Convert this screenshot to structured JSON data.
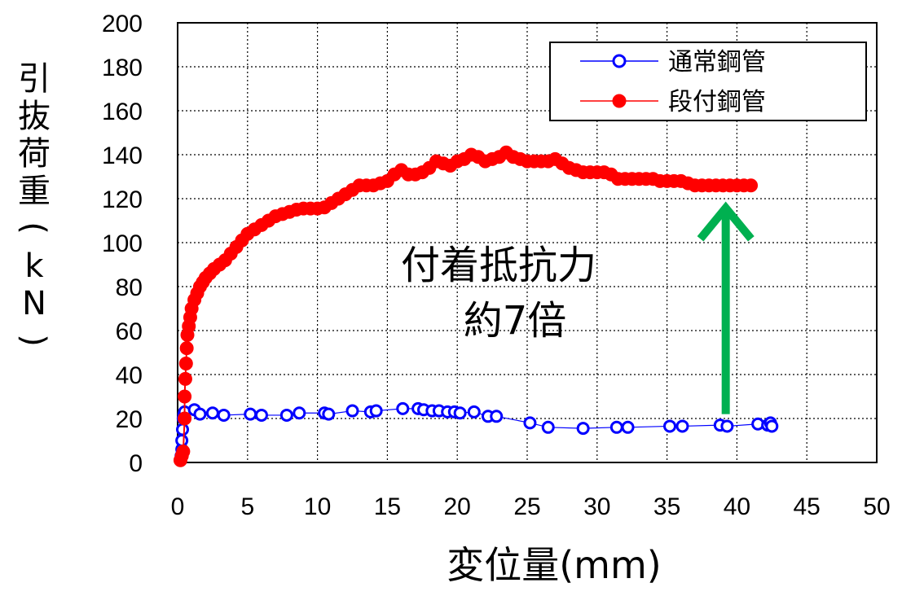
{
  "chart_data": {
    "type": "scatter",
    "xlabel": "変位量(mm)",
    "ylabel": "引抜荷重(kN)",
    "xlim": [
      0,
      50
    ],
    "ylim": [
      0,
      200
    ],
    "xticks": [
      "0",
      "5",
      "10",
      "15",
      "20",
      "25",
      "30",
      "35",
      "40",
      "45",
      "50"
    ],
    "yticks": [
      "0",
      "20",
      "40",
      "60",
      "80",
      "100",
      "120",
      "140",
      "160",
      "180",
      "200"
    ],
    "grid": true,
    "legend_position": "top-right",
    "annotation": {
      "line1": "付着抵抗力",
      "line2": "約7倍",
      "arrow_color": "#00b050",
      "arrow_x": 39.2,
      "arrow_from_y": 22,
      "arrow_to_y": 118
    },
    "series": [
      {
        "name": "通常鋼管",
        "color": "#0000ff",
        "marker": "open-circle",
        "x": [
          0.2,
          0.25,
          0.3,
          0.3,
          0.35,
          0.4,
          0.45,
          0.5,
          1.2,
          1.6,
          2.5,
          3.3,
          5.2,
          6.0,
          7.8,
          8.7,
          10.5,
          10.8,
          12.5,
          13.8,
          14.2,
          16.1,
          17.2,
          17.6,
          18.2,
          18.7,
          19.3,
          19.8,
          20.2,
          21.2,
          22.2,
          22.8,
          25.2,
          26.5,
          29.0,
          31.4,
          32.2,
          35.2,
          36.1,
          38.8,
          39.3,
          41.5,
          42.2,
          42.4,
          42.5
        ],
        "y": [
          1,
          3,
          6,
          10,
          15,
          20,
          22,
          23,
          24,
          22,
          22.5,
          21.5,
          22,
          21.5,
          21.5,
          22.5,
          22.5,
          22,
          23.5,
          23,
          23.5,
          24.5,
          24.5,
          24,
          23.5,
          23.5,
          23,
          23,
          22.5,
          23,
          21,
          21,
          18,
          16,
          15.5,
          16,
          16,
          16.5,
          16.5,
          17,
          16.5,
          17.5,
          17,
          18,
          16.5
        ]
      },
      {
        "name": "段付鋼管",
        "color": "#ff0000",
        "marker": "filled-circle",
        "x": [
          0.2,
          0.3,
          0.4,
          0.5,
          0.5,
          0.55,
          0.6,
          0.65,
          0.7,
          0.8,
          0.9,
          1.0,
          1.2,
          1.4,
          1.6,
          1.8,
          2.0,
          2.3,
          2.6,
          3.0,
          3.4,
          3.8,
          4.2,
          4.6,
          5.0,
          5.5,
          6.0,
          6.5,
          7.0,
          7.5,
          8.0,
          8.5,
          9.0,
          9.5,
          10.0,
          10.5,
          11.0,
          11.5,
          12.0,
          12.5,
          13.0,
          13.5,
          14.0,
          14.5,
          15.0,
          15.5,
          16.0,
          16.5,
          17.0,
          17.5,
          18.0,
          18.5,
          19.0,
          19.5,
          20.0,
          20.5,
          21.0,
          21.5,
          22.0,
          22.5,
          23.0,
          23.5,
          24.0,
          24.5,
          25.0,
          25.5,
          26.0,
          26.5,
          27.0,
          27.5,
          28.0,
          28.5,
          29.0,
          29.5,
          30.0,
          30.5,
          31.0,
          31.5,
          32.0,
          32.5,
          33.0,
          33.5,
          34.0,
          34.5,
          35.0,
          35.5,
          36.0,
          36.5,
          37.0,
          37.5,
          38.0,
          38.5,
          39.0,
          39.5,
          40.0,
          40.5,
          41.0
        ],
        "y": [
          1,
          3,
          5,
          20,
          30,
          38,
          45,
          52,
          58,
          62,
          66,
          70,
          74,
          77,
          80,
          82,
          84,
          86,
          88,
          90,
          92,
          95,
          98,
          101,
          104,
          106,
          108,
          110,
          112,
          113,
          114,
          115,
          115.5,
          115.5,
          115.5,
          116,
          118,
          120,
          122,
          124,
          126,
          126,
          126,
          127,
          128,
          131,
          133,
          131,
          131,
          132,
          134,
          137,
          136,
          135,
          137,
          138,
          140,
          139,
          137,
          138,
          139,
          141,
          139,
          138,
          137,
          137,
          137,
          137,
          138,
          136,
          134,
          133,
          132,
          132,
          132,
          132,
          131,
          129,
          129,
          129,
          129,
          129,
          129,
          128,
          128,
          128,
          128,
          127,
          126,
          126,
          126,
          126,
          126,
          126,
          126,
          126,
          126
        ]
      }
    ]
  }
}
